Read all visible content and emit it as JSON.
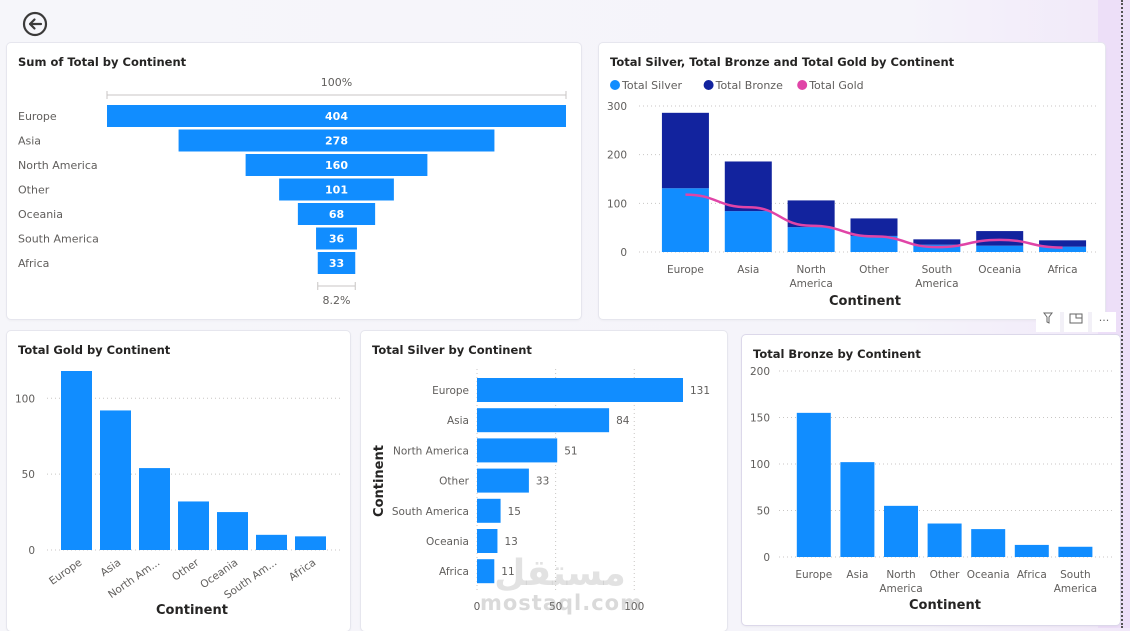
{
  "page": {
    "back_button_label": "Back",
    "visual_header": {
      "filter_icon": "filter-icon",
      "focus_icon": "focus-mode-icon",
      "more_icon": "more-options-icon",
      "more_label": "···"
    },
    "watermark": {
      "arabic": "مستقل",
      "latin": "mostaql.com"
    }
  },
  "colors": {
    "bar": "#118dff",
    "silver": "#118dff",
    "bronze": "#12239e",
    "gold": "#e044a7",
    "grid": "#c8c6c4",
    "axis_text": "#605e5c"
  },
  "chart_data": [
    {
      "id": "funnel",
      "type": "bar",
      "subtype": "funnel",
      "title": "Sum of Total by Continent",
      "categories": [
        "Europe",
        "Asia",
        "North America",
        "Other",
        "Oceania",
        "South America",
        "Africa"
      ],
      "values": [
        404,
        278,
        160,
        101,
        68,
        36,
        33
      ],
      "value_labels": [
        "404",
        "278",
        "160",
        "101",
        "68",
        "36",
        "33"
      ],
      "top_label": "100%",
      "bottom_label": "8.2%"
    },
    {
      "id": "combo",
      "type": "bar",
      "subtype": "stacked-column-with-line",
      "title": "Total Silver, Total Bronze and Total Gold by Continent",
      "legend": [
        "Total Silver",
        "Total Bronze",
        "Total Gold"
      ],
      "legend_position": "top-left",
      "categories": [
        "Europe",
        "Asia",
        "North America",
        "Other",
        "South America",
        "Oceania",
        "Africa"
      ],
      "category_labels": [
        [
          "Europe"
        ],
        [
          "Asia"
        ],
        [
          "North",
          "America"
        ],
        [
          "Other"
        ],
        [
          "South",
          "America"
        ],
        [
          "Oceania"
        ],
        [
          "Africa"
        ]
      ],
      "series": [
        {
          "name": "Total Silver",
          "kind": "bar",
          "values": [
            131,
            84,
            51,
            33,
            15,
            13,
            11
          ]
        },
        {
          "name": "Total Bronze",
          "kind": "bar",
          "values": [
            155,
            102,
            55,
            36,
            11,
            30,
            13
          ]
        },
        {
          "name": "Total Gold",
          "kind": "line",
          "values": [
            118,
            92,
            54,
            32,
            10,
            25,
            9
          ]
        }
      ],
      "xlabel": "Continent",
      "ylabel": "",
      "ylim": [
        0,
        300
      ],
      "yticks": [
        0,
        100,
        200,
        300
      ],
      "grid": true
    },
    {
      "id": "gold",
      "type": "bar",
      "title": "Total Gold by Continent",
      "categories": [
        "Europe",
        "Asia",
        "North America",
        "Other",
        "Oceania",
        "South America",
        "Africa"
      ],
      "category_labels": [
        "Europe",
        "Asia",
        "North Am...",
        "Other",
        "Oceania",
        "South Am...",
        "Africa"
      ],
      "values": [
        118,
        92,
        54,
        32,
        25,
        10,
        9
      ],
      "xlabel": "Continent",
      "ylabel": "",
      "ylim": [
        0,
        120
      ],
      "yticks": [
        0,
        50,
        100
      ],
      "grid": true
    },
    {
      "id": "silver",
      "type": "bar",
      "orientation": "horizontal",
      "title": "Total Silver by Continent",
      "categories": [
        "Europe",
        "Asia",
        "North America",
        "Other",
        "South America",
        "Oceania",
        "Africa"
      ],
      "values": [
        131,
        84,
        51,
        33,
        15,
        13,
        11
      ],
      "value_labels": [
        "131",
        "84",
        "51",
        "33",
        "15",
        "13",
        "11"
      ],
      "xlabel": "",
      "ylabel": "Continent",
      "xlim": [
        0,
        131
      ],
      "xticks": [
        0,
        50,
        100
      ],
      "grid": true
    },
    {
      "id": "bronze",
      "type": "bar",
      "title": "Total Bronze by Continent",
      "categories": [
        "Europe",
        "Asia",
        "North America",
        "Other",
        "Oceania",
        "Africa",
        "South America"
      ],
      "category_labels": [
        [
          "Europe"
        ],
        [
          "Asia"
        ],
        [
          "North",
          "America"
        ],
        [
          "Other"
        ],
        [
          "Oceania"
        ],
        [
          "Africa"
        ],
        [
          "South",
          "America"
        ]
      ],
      "values": [
        155,
        102,
        55,
        36,
        30,
        13,
        11
      ],
      "xlabel": "Continent",
      "ylabel": "",
      "ylim": [
        0,
        200
      ],
      "yticks": [
        0,
        50,
        100,
        150,
        200
      ],
      "grid": true
    }
  ]
}
